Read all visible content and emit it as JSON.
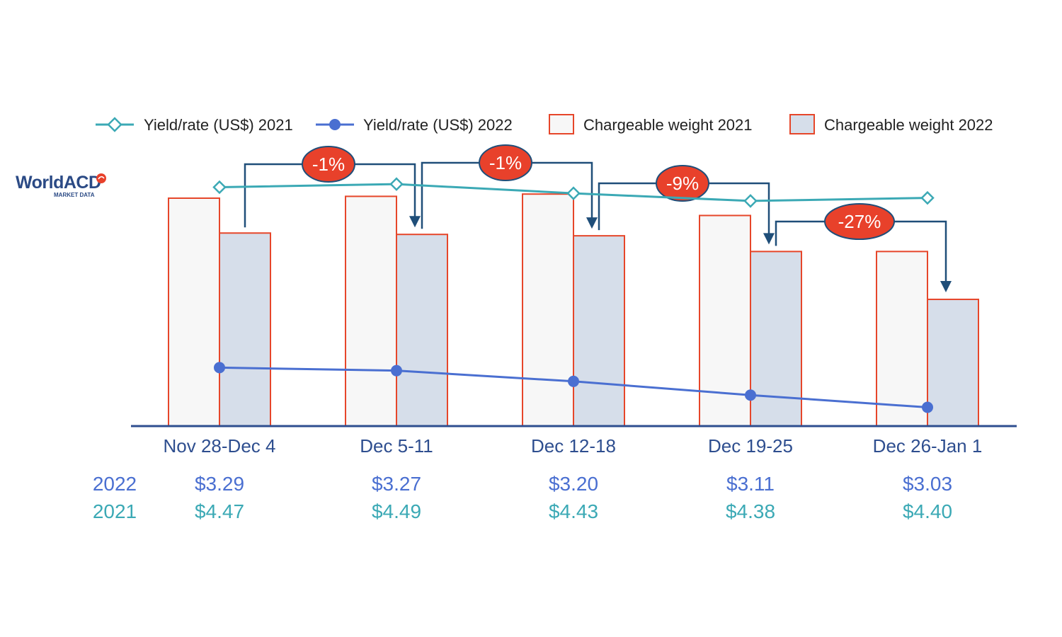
{
  "logo": {
    "main": "WorldACD",
    "sub": "MARKET DATA"
  },
  "colors": {
    "rate_2021": "#3ba9b5",
    "rate_2022": "#4a6fd1",
    "bar_border": "#e6462a",
    "bar_2021_fill": "#f7f7f7",
    "bar_2022_fill": "#d6deea",
    "axis": "#2e4e8f",
    "arrow": "#1f4e79",
    "badge_fill": "#e8412b",
    "row_2022": "#4a6fd1",
    "row_2021": "#3ba9b5"
  },
  "chart_data": {
    "type": "bar",
    "categories": [
      "Nov 28-Dec 4",
      "Dec 5-11",
      "Dec 12-18",
      "Dec 19-25",
      "Dec 26-Jan 1"
    ],
    "legend": [
      {
        "label": "Yield/rate (US$) 2021",
        "marker": "line-open-diamond",
        "color": "#3ba9b5"
      },
      {
        "label": "Yield/rate (US$) 2022",
        "marker": "line-filled-circle",
        "color": "#4a6fd1"
      },
      {
        "label": "Chargeable weight 2021",
        "marker": "box",
        "color": "#f7f7f7"
      },
      {
        "label": "Chargeable weight 2022",
        "marker": "box",
        "color": "#d6deea"
      }
    ],
    "legend_position": "top",
    "bar_series": [
      {
        "name": "Chargeable weight 2021",
        "values": [
          100,
          100.8,
          101.8,
          92.4,
          76.6
        ]
      },
      {
        "name": "Chargeable weight 2022",
        "values": [
          84.7,
          84.1,
          83.5,
          76.6,
          55.6
        ]
      }
    ],
    "line_series": [
      {
        "name": "Yield/rate (US$) 2021",
        "values": [
          4.47,
          4.49,
          4.43,
          4.38,
          4.4
        ]
      },
      {
        "name": "Yield/rate (US$) 2022",
        "values": [
          3.29,
          3.27,
          3.2,
          3.11,
          3.03
        ]
      }
    ],
    "weight_scale": "indexed",
    "change_annotations": [
      "-1%",
      "-1%",
      "-9%",
      "-27%"
    ],
    "value_rows": [
      {
        "label": "2022",
        "values": [
          "$3.29",
          "$3.27",
          "$3.20",
          "$3.11",
          "$3.03"
        ]
      },
      {
        "label": "2021",
        "values": [
          "$4.47",
          "$4.49",
          "$4.43",
          "$4.38",
          "$4.40"
        ]
      }
    ],
    "grid": false
  }
}
